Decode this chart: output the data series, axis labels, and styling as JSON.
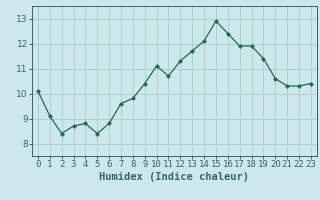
{
  "xlabel": "Humidex (Indice chaleur)",
  "x": [
    0,
    1,
    2,
    3,
    4,
    5,
    6,
    7,
    8,
    9,
    10,
    11,
    12,
    13,
    14,
    15,
    16,
    17,
    18,
    19,
    20,
    21,
    22,
    23
  ],
  "y": [
    10.1,
    9.1,
    8.4,
    8.7,
    8.8,
    8.4,
    8.8,
    9.6,
    9.8,
    10.4,
    11.1,
    10.7,
    11.3,
    11.7,
    12.1,
    12.9,
    12.4,
    11.9,
    11.9,
    11.4,
    10.6,
    10.3,
    10.3,
    10.4
  ],
  "line_color": "#1a6b5a",
  "marker": "D",
  "marker_size": 2.0,
  "bg_color": "#cce8ec",
  "grid_color": "#aacccc",
  "ylim": [
    7.5,
    13.5
  ],
  "xlim": [
    -0.5,
    23.5
  ],
  "yticks": [
    8,
    9,
    10,
    11,
    12,
    13
  ],
  "xtick_labels": [
    "0",
    "1",
    "2",
    "3",
    "4",
    "5",
    "6",
    "7",
    "8",
    "9",
    "10",
    "11",
    "12",
    "13",
    "14",
    "15",
    "16",
    "17",
    "18",
    "19",
    "20",
    "21",
    "22",
    "23"
  ],
  "xlabel_fontsize": 7.5,
  "tick_fontsize": 6.5,
  "axis_color": "#336666",
  "linewidth": 0.9
}
